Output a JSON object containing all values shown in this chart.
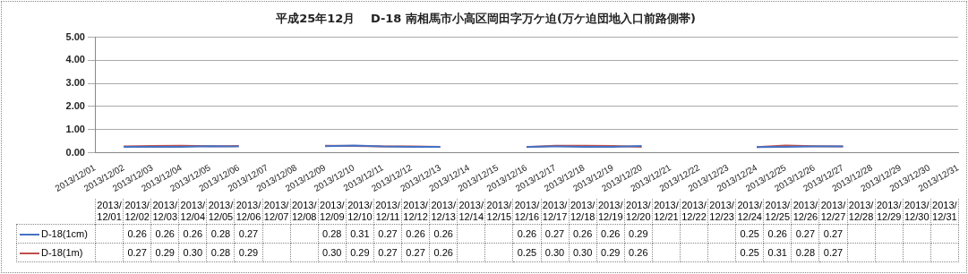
{
  "chart_data": {
    "type": "line",
    "title": "平成25年12月　 D-18 南相馬市小高区岡田字万ケ迫(万ケ迫団地入口前路側帯)",
    "categories": [
      "2013/12/01",
      "2013/12/02",
      "2013/12/03",
      "2013/12/04",
      "2013/12/05",
      "2013/12/06",
      "2013/12/07",
      "2013/12/08",
      "2013/12/09",
      "2013/12/10",
      "2013/12/11",
      "2013/12/12",
      "2013/12/13",
      "2013/12/14",
      "2013/12/15",
      "2013/12/16",
      "2013/12/17",
      "2013/12/18",
      "2013/12/19",
      "2013/12/20",
      "2013/12/21",
      "2013/12/22",
      "2013/12/23",
      "2013/12/24",
      "2013/12/25",
      "2013/12/26",
      "2013/12/27",
      "2013/12/28",
      "2013/12/29",
      "2013/12/30",
      "2013/12/31"
    ],
    "series": [
      {
        "name": "D-18(1cm)",
        "color": "#4472c4",
        "values": [
          null,
          0.26,
          0.26,
          0.26,
          0.28,
          0.27,
          null,
          null,
          0.28,
          0.31,
          0.27,
          0.26,
          0.26,
          null,
          null,
          0.26,
          0.27,
          0.26,
          0.26,
          0.29,
          null,
          null,
          null,
          0.25,
          0.26,
          0.27,
          0.27,
          null,
          null,
          null,
          null
        ],
        "value_labels": [
          null,
          "0.26",
          "0.26",
          "0.26",
          "0.28",
          "0.27",
          null,
          null,
          "0.28",
          "0.31",
          "0.27",
          "0.26",
          "0.26",
          null,
          null,
          "0.26",
          "0.27",
          "0.26",
          "0.26",
          "0.29",
          null,
          null,
          null,
          "0.25",
          "0.26",
          "0.27",
          "0.27",
          null,
          null,
          null,
          null
        ]
      },
      {
        "name": "D-18(1m)",
        "color": "#c0504d",
        "values": [
          null,
          0.27,
          0.29,
          0.3,
          0.28,
          0.29,
          null,
          null,
          0.3,
          0.29,
          0.27,
          0.27,
          0.26,
          null,
          null,
          0.25,
          0.3,
          0.3,
          0.29,
          0.26,
          null,
          null,
          null,
          0.25,
          0.31,
          0.28,
          0.27,
          null,
          null,
          null,
          null
        ],
        "value_labels": [
          null,
          "0.27",
          "0.29",
          "0.30",
          "0.28",
          "0.29",
          null,
          null,
          "0.30",
          "0.29",
          "0.27",
          "0.27",
          "0.26",
          null,
          null,
          "0.25",
          "0.30",
          "0.30",
          "0.29",
          "0.26",
          null,
          null,
          null,
          "0.25",
          "0.31",
          "0.28",
          "0.27",
          null,
          null,
          null,
          null
        ]
      }
    ],
    "ylim": [
      0,
      5
    ],
    "yticks": [
      {
        "value": 0,
        "label": "0.00"
      },
      {
        "value": 1,
        "label": "1.00"
      },
      {
        "value": 2,
        "label": "2.00"
      },
      {
        "value": 3,
        "label": "3.00"
      },
      {
        "value": 4,
        "label": "4.00"
      },
      {
        "value": 5,
        "label": "5.00"
      }
    ],
    "grid": "y",
    "legend": "bottom",
    "marker": "none",
    "line_style": "solid"
  }
}
